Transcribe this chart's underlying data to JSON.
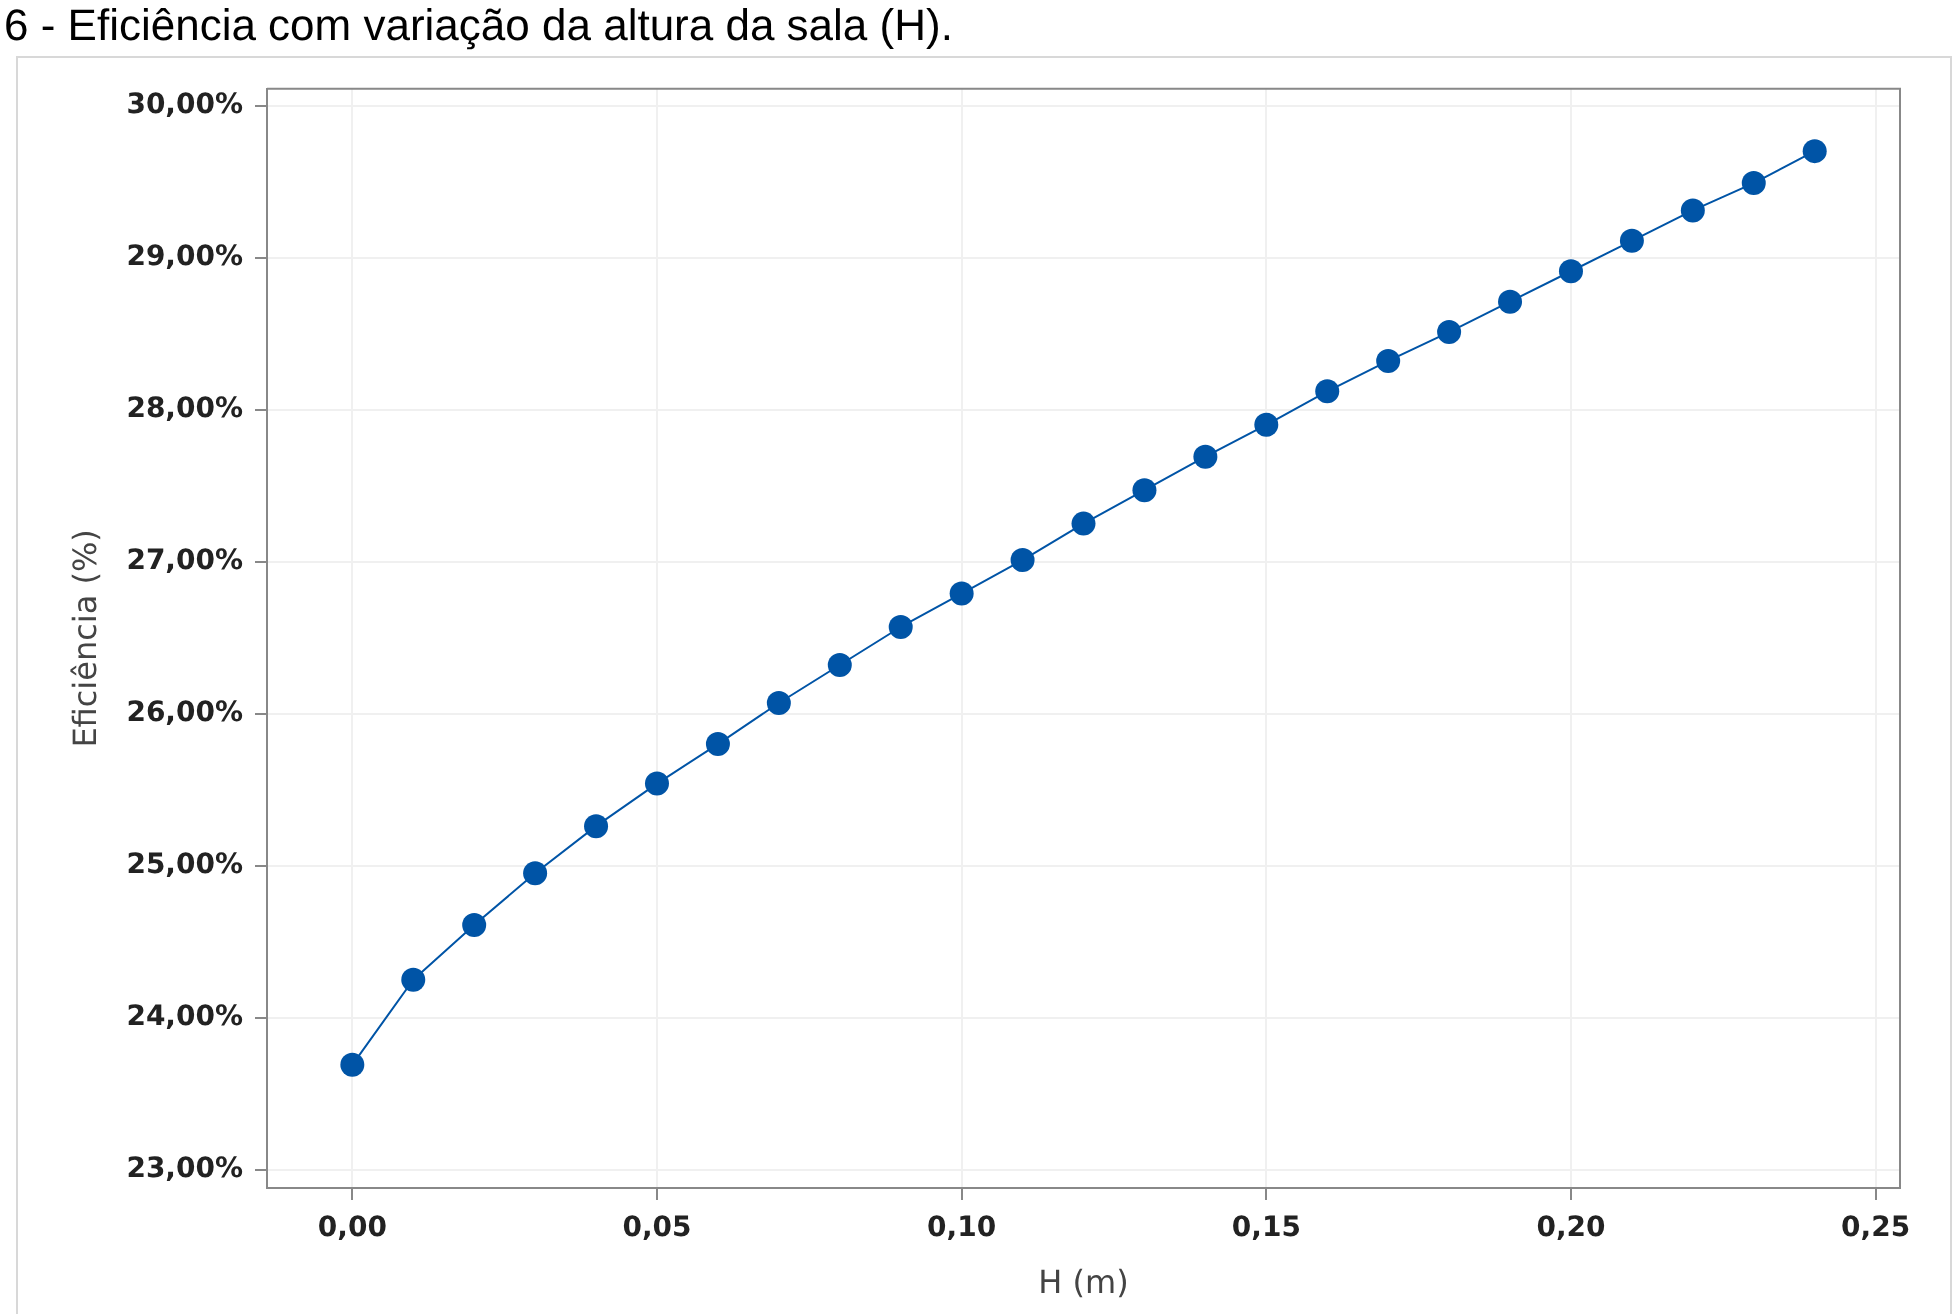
{
  "chart_data": {
    "type": "line",
    "title": "6 - Eficiência com variação da altura da sala (H).",
    "xlabel": "H (m)",
    "ylabel": "Eficiência (%)",
    "x": [
      0,
      0.01,
      0.02,
      0.03,
      0.04,
      0.05,
      0.06,
      0.07,
      0.08,
      0.09,
      0.1,
      0.11,
      0.12,
      0.13,
      0.14,
      0.15,
      0.16,
      0.17,
      0.18,
      0.19,
      0.2,
      0.21,
      0.22,
      0.23,
      0.24
    ],
    "series": [
      {
        "color": "#0054a6",
        "values": [
          23.69,
          24.25,
          24.61,
          24.95,
          25.26,
          25.54,
          25.8,
          26.07,
          26.32,
          26.57,
          26.79,
          27.01,
          27.25,
          27.47,
          27.69,
          27.9,
          28.12,
          28.32,
          28.51,
          28.71,
          28.91,
          29.11,
          29.31,
          29.49,
          29.7
        ]
      }
    ],
    "xlim": [
      -0.014,
      0.254
    ],
    "ylim": [
      22.88,
      30.11
    ],
    "xticks": [
      {
        "value": 0,
        "label": "0,00"
      },
      {
        "value": 0.05,
        "label": "0,05"
      },
      {
        "value": 0.1,
        "label": "0,10"
      },
      {
        "value": 0.15,
        "label": "0,15"
      },
      {
        "value": 0.2,
        "label": "0,20"
      },
      {
        "value": 0.25,
        "label": "0,25"
      }
    ],
    "yticks": [
      {
        "value": 23,
        "label": "23,00%"
      },
      {
        "value": 24,
        "label": "24,00%"
      },
      {
        "value": 25,
        "label": "25,00%"
      },
      {
        "value": 26,
        "label": "26,00%"
      },
      {
        "value": 27,
        "label": "27,00%"
      },
      {
        "value": 28,
        "label": "28,00%"
      },
      {
        "value": 29,
        "label": "29,00%"
      },
      {
        "value": 30,
        "label": "30,00%"
      }
    ],
    "grid": true,
    "marker": "circle",
    "line_style": "solid"
  }
}
